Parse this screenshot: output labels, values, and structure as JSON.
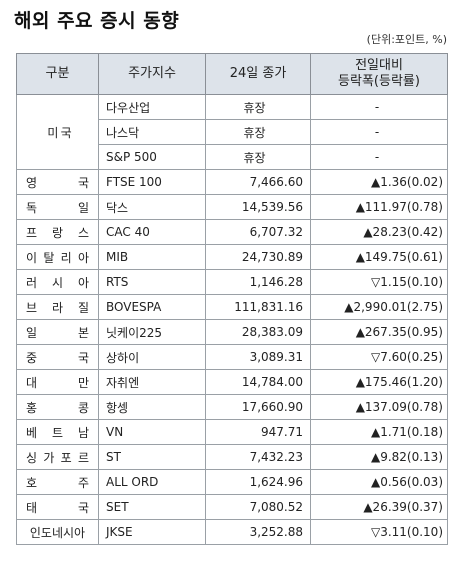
{
  "title": "해외 주요 증시 동향",
  "unit_note": "(단위:포인트, %)",
  "headers": {
    "region": "구분",
    "index": "주가지수",
    "close": "24일 종가",
    "change_line1": "전일대비",
    "change_line2": "등락폭(등락률)"
  },
  "us": {
    "region": "미 국",
    "rows": [
      {
        "index": "다우산업",
        "close": "휴장",
        "change": "-"
      },
      {
        "index": "나스닥",
        "close": "휴장",
        "change": "-"
      },
      {
        "index": "S&P 500",
        "close": "휴장",
        "change": "-"
      }
    ]
  },
  "rows": [
    {
      "region": "영 국",
      "index": "FTSE 100",
      "close": "7,466.60",
      "change": "▲1.36(0.02)"
    },
    {
      "region": "독 일",
      "index": "닥스",
      "close": "14,539.56",
      "change": "▲111.97(0.78)"
    },
    {
      "region": "프 랑 스",
      "index": "CAC 40",
      "close": "6,707.32",
      "change": "▲28.23(0.42)"
    },
    {
      "region": "이 탈 리 아",
      "index": "MIB",
      "close": "24,730.89",
      "change": "▲149.75(0.61)"
    },
    {
      "region": "러 시 아",
      "index": "RTS",
      "close": "1,146.28",
      "change": "▽1.15(0.10)"
    },
    {
      "region": "브 라 질",
      "index": "BOVESPA",
      "close": "111,831.16",
      "change": "▲2,990.01(2.75)"
    },
    {
      "region": "일 본",
      "index": "닛케이225",
      "close": "28,383.09",
      "change": "▲267.35(0.95)"
    },
    {
      "region": "중 국",
      "index": "상하이",
      "close": "3,089.31",
      "change": "▽7.60(0.25)"
    },
    {
      "region": "대 만",
      "index": "자취엔",
      "close": "14,784.00",
      "change": "▲175.46(1.20)"
    },
    {
      "region": "홍 콩",
      "index": "항셍",
      "close": "17,660.90",
      "change": "▲137.09(0.78)"
    },
    {
      "region": "베 트 남",
      "index": "VN",
      "close": "947.71",
      "change": "▲1.71(0.18)"
    },
    {
      "region": "싱 가 포 르",
      "index": "ST",
      "close": "7,432.23",
      "change": "▲9.82(0.13)"
    },
    {
      "region": "호 주",
      "index": "ALL ORD",
      "close": "1,624.96",
      "change": "▲0.56(0.03)"
    },
    {
      "region": "태 국",
      "index": "SET",
      "close": "7,080.52",
      "change": "▲26.39(0.37)"
    },
    {
      "region": "인도네시아",
      "index": "JKSE",
      "close": "3,252.88",
      "change": "▽3.11(0.10)"
    }
  ]
}
